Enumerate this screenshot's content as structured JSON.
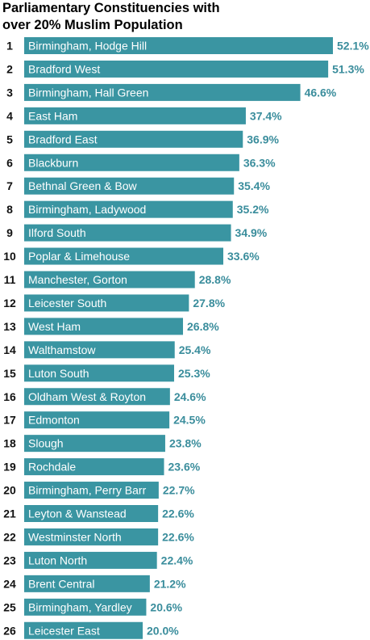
{
  "chart_data": {
    "type": "bar",
    "orientation": "horizontal",
    "title": "Parliamentary Constituencies with over 20% Muslim Population",
    "title_lines": [
      "Parliamentary Constituencies with",
      "over 20% Muslim Population"
    ],
    "bar_color": "#3a95a2",
    "value_label_color": "#3a8d9c",
    "value_suffix": "%",
    "xlim": [
      0,
      52.1
    ],
    "ranks": [
      "1",
      "2",
      "3",
      "4",
      "5",
      "6",
      "7",
      "8",
      "9",
      "10",
      "11",
      "12",
      "13",
      "14",
      "15",
      "16",
      "17",
      "18",
      "19",
      "20",
      "21",
      "22",
      "23",
      "24",
      "25",
      "26"
    ],
    "categories": [
      "Birmingham, Hodge Hill",
      "Bradford West",
      "Birmingham, Hall Green",
      "East Ham",
      "Bradford East",
      "Blackburn",
      "Bethnal Green & Bow",
      "Birmingham, Ladywood",
      "Ilford South",
      "Poplar & Limehouse",
      "Manchester, Gorton",
      "Leicester South",
      "West Ham",
      "Walthamstow",
      "Luton South",
      "Oldham West & Royton",
      "Edmonton",
      "Slough",
      "Rochdale",
      "Birmingham, Perry Barr",
      "Leyton & Wanstead",
      "Westminster North",
      "Luton North",
      "Brent Central",
      "Birmingham, Yardley",
      "Leicester East"
    ],
    "values": [
      52.1,
      51.3,
      46.6,
      37.4,
      36.9,
      36.3,
      35.4,
      35.2,
      34.9,
      33.6,
      28.8,
      27.8,
      26.8,
      25.4,
      25.3,
      24.6,
      24.5,
      23.8,
      23.6,
      22.7,
      22.6,
      22.6,
      22.4,
      21.2,
      20.6,
      20.0
    ]
  }
}
